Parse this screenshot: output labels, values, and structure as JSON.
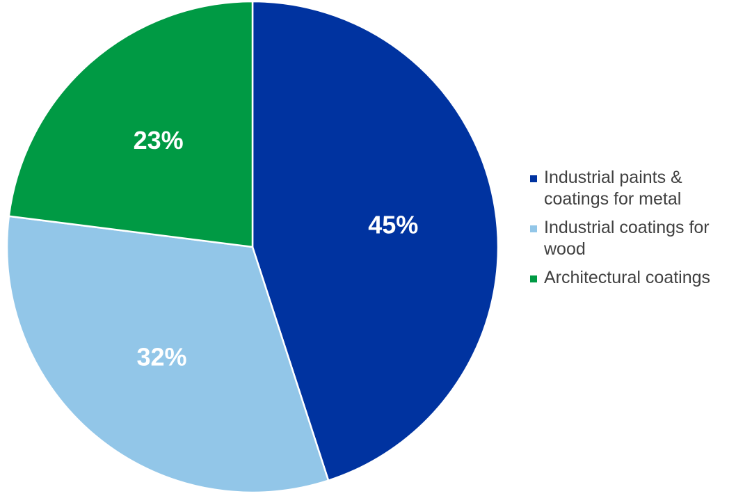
{
  "chart_data": {
    "type": "pie",
    "slices": [
      {
        "name": "Industrial paints & coatings for metal",
        "value": 45,
        "label": "45%",
        "color": "#0033A0"
      },
      {
        "name": "Industrial coatings for wood",
        "value": 32,
        "label": "32%",
        "color": "#92C6E8"
      },
      {
        "name": "Architectural coatings",
        "value": 23,
        "label": "23%",
        "color": "#009A44"
      }
    ],
    "legend": {
      "position": "right",
      "entries": [
        {
          "label": "Industrial paints & coatings for metal",
          "color": "#0033A0"
        },
        {
          "label": "Industrial coatings for wood",
          "color": "#92C6E8"
        },
        {
          "label": "Architectural coatings",
          "color": "#009A44"
        }
      ]
    }
  }
}
